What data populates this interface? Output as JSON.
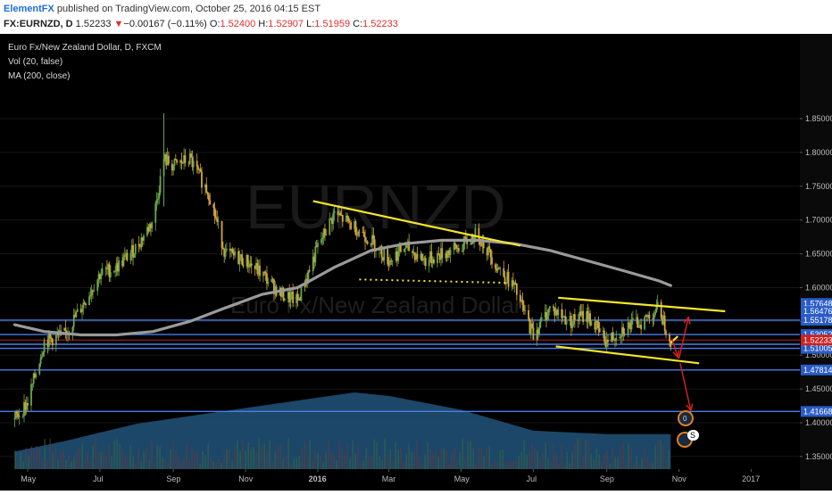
{
  "header": {
    "author": "ElementFX",
    "published": " published on TradingView.com, October 25, 2016 04:15 EST",
    "symbol": "FX:EURNZD, D",
    "last": "1.52233",
    "change_arrow": "▼",
    "change": "−0.00167 (−0.11%)",
    "o_label": "O:",
    "o_value": "1.52400",
    "h_label": "H:",
    "h_value": "1.52907",
    "l_label": "L:",
    "l_value": "1.51959",
    "c_label": "C:",
    "c_value": "1.52233"
  },
  "legend": {
    "title": "Euro Fx/New Zealand Dollar, D, FXCM",
    "vol": "Vol (20, false)",
    "ma": "MA (200, close)"
  },
  "watermark": {
    "symbol": "EURNZD",
    "name": "Euro Fx/New Zealand Dollar"
  },
  "badges": {
    "earnings": "0",
    "dividend": "S"
  },
  "colors": {
    "background": "#000000",
    "bull_candle": "#6aa84f",
    "bear_candle": "#d9a53a",
    "ma_line": "#9a9a9a",
    "trendline": "#f5e62a",
    "horizontal_levels": "#4a7ee8",
    "projection_arrows": "#e02020",
    "price_label_bg": "#2a5cc8",
    "last_price_label_bg": "#cc2222",
    "volume_area": "#1f4f73"
  },
  "chart_data": {
    "type": "candlestick",
    "symbol": "FX:EURNZD",
    "interval": "D",
    "ylim": [
      1.37,
      1.89
    ],
    "y_ticks": [
      "1.85000",
      "1.80000",
      "1.75000",
      "1.70000",
      "1.65000",
      "1.60000",
      "1.55000",
      "1.50000",
      "1.45000",
      "1.40000",
      "1.35000"
    ],
    "x_ticks": [
      "May",
      "Jul",
      "Sep",
      "Nov",
      "2016",
      "Mar",
      "May",
      "Jul",
      "Sep",
      "Nov",
      "2017"
    ],
    "price_close_path": {
      "dates": [
        "2015-04-20",
        "2015-05-01",
        "2015-05-15",
        "2015-06-01",
        "2015-06-15",
        "2015-07-01",
        "2015-07-15",
        "2015-08-01",
        "2015-08-15",
        "2015-08-24",
        "2015-09-01",
        "2015-09-15",
        "2015-10-01",
        "2015-10-15",
        "2015-11-01",
        "2015-11-15",
        "2015-12-01",
        "2015-12-15",
        "2016-01-01",
        "2016-01-15",
        "2016-02-01",
        "2016-02-15",
        "2016-03-01",
        "2016-03-15",
        "2016-04-01",
        "2016-04-15",
        "2016-05-01",
        "2016-05-15",
        "2016-06-01",
        "2016-06-15",
        "2016-07-01",
        "2016-07-15",
        "2016-08-01",
        "2016-08-15",
        "2016-09-01",
        "2016-09-15",
        "2016-10-01",
        "2016-10-15",
        "2016-10-25"
      ],
      "values": [
        1.405,
        1.43,
        1.52,
        1.53,
        1.57,
        1.62,
        1.63,
        1.66,
        1.7,
        1.79,
        1.78,
        1.79,
        1.74,
        1.65,
        1.64,
        1.62,
        1.59,
        1.58,
        1.66,
        1.71,
        1.69,
        1.67,
        1.64,
        1.66,
        1.64,
        1.65,
        1.66,
        1.68,
        1.63,
        1.6,
        1.53,
        1.57,
        1.55,
        1.56,
        1.52,
        1.54,
        1.55,
        1.57,
        1.522
      ]
    },
    "moving_average_200": {
      "dates": [
        "2015-04-20",
        "2015-05-15",
        "2015-06-15",
        "2015-07-15",
        "2015-08-15",
        "2015-09-15",
        "2015-10-15",
        "2015-11-15",
        "2015-12-15",
        "2016-01-15",
        "2016-02-15",
        "2016-03-15",
        "2016-04-15",
        "2016-05-15",
        "2016-06-15",
        "2016-07-15",
        "2016-08-15",
        "2016-09-15",
        "2016-10-15",
        "2016-10-25"
      ],
      "values": [
        1.545,
        1.535,
        1.53,
        1.53,
        1.535,
        1.55,
        1.57,
        1.59,
        1.6,
        1.63,
        1.655,
        1.665,
        1.67,
        1.67,
        1.665,
        1.655,
        1.64,
        1.625,
        1.61,
        1.603
      ]
    },
    "volume_area": {
      "dates": [
        "2015-04-20",
        "2015-06-01",
        "2015-08-01",
        "2015-10-01",
        "2015-12-01",
        "2016-02-01",
        "2016-03-01",
        "2016-05-01",
        "2016-07-01",
        "2016-09-01",
        "2016-10-25"
      ],
      "relative": [
        0.15,
        0.3,
        0.55,
        0.7,
        0.85,
        1.0,
        0.95,
        0.75,
        0.45,
        0.4,
        0.4
      ]
    },
    "horizontal_levels": [
      {
        "price": 1.55178,
        "label": "1.55178"
      },
      {
        "price": 1.53052,
        "label": "1.53052"
      },
      {
        "price": 1.51614,
        "label": "1.51614"
      },
      {
        "price": 1.51005,
        "label": "1.51005"
      },
      {
        "price": 1.47814,
        "label": "1.47814"
      },
      {
        "price": 1.41668,
        "label": "1.41668"
      }
    ],
    "price_labels": [
      {
        "price": 1.57648,
        "label": "1.57648"
      },
      {
        "price": 1.56476,
        "label": "1.56476"
      },
      {
        "price": 1.52233,
        "label": "1.52233",
        "current": true
      }
    ],
    "trendlines": [
      {
        "from": [
          "2015-12-28",
          1.728
        ],
        "to": [
          "2016-06-20",
          1.662
        ]
      },
      {
        "from": [
          "2016-07-22",
          1.585
        ],
        "to": [
          "2016-12-10",
          1.565
        ]
      },
      {
        "from": [
          "2016-07-20",
          1.513
        ],
        "to": [
          "2016-11-18",
          1.488
        ]
      },
      {
        "from": [
          "2016-10-25",
          1.518
        ],
        "to": [
          "2016-10-31",
          1.528
        ]
      }
    ],
    "dotted_support": [
      {
        "from": [
          "2016-02-05",
          1.612
        ],
        "to": [
          "2016-06-10",
          1.607
        ]
      }
    ],
    "projection_arrows": [
      {
        "from": [
          "2016-10-26",
          1.525
        ],
        "to": [
          "2016-10-31",
          1.497
        ]
      },
      {
        "from": [
          "2016-11-01",
          1.495
        ],
        "to": [
          "2016-11-09",
          1.556
        ]
      },
      {
        "from": [
          "2016-11-02",
          1.488
        ],
        "to": [
          "2016-11-11",
          1.418
        ]
      }
    ]
  }
}
